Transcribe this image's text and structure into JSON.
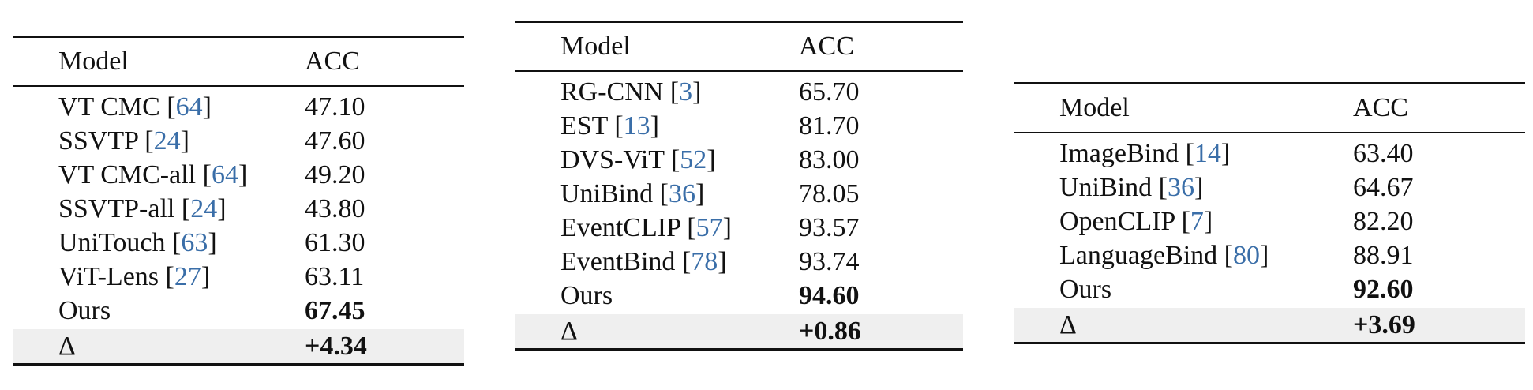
{
  "tables": [
    {
      "header": {
        "model": "Model",
        "acc": "ACC"
      },
      "rows": [
        {
          "name": "VT CMC",
          "ref": "64",
          "acc": "47.10"
        },
        {
          "name": "SSVTP",
          "ref": "24",
          "acc": "47.60"
        },
        {
          "name": "VT CMC-all",
          "ref": "64",
          "acc": "49.20"
        },
        {
          "name": "SSVTP-all",
          "ref": "24",
          "acc": "43.80"
        },
        {
          "name": "UniTouch",
          "ref": "63",
          "acc": "61.30"
        },
        {
          "name": "ViT-Lens",
          "ref": "27",
          "acc": "63.11"
        }
      ],
      "ours": {
        "name": "Ours",
        "acc": "67.45"
      },
      "delta": {
        "name": "Δ",
        "acc": "+4.34"
      }
    },
    {
      "header": {
        "model": "Model",
        "acc": "ACC"
      },
      "rows": [
        {
          "name": "RG-CNN",
          "ref": "3",
          "acc": "65.70"
        },
        {
          "name": "EST",
          "ref": "13",
          "acc": "81.70"
        },
        {
          "name": "DVS-ViT",
          "ref": "52",
          "acc": "83.00"
        },
        {
          "name": "UniBind",
          "ref": "36",
          "acc": "78.05"
        },
        {
          "name": "EventCLIP",
          "ref": "57",
          "acc": "93.57"
        },
        {
          "name": "EventBind",
          "ref": "78",
          "acc": "93.74"
        }
      ],
      "ours": {
        "name": "Ours",
        "acc": "94.60"
      },
      "delta": {
        "name": "Δ",
        "acc": "+0.86"
      }
    },
    {
      "header": {
        "model": "Model",
        "acc": "ACC"
      },
      "rows": [
        {
          "name": "ImageBind",
          "ref": "14",
          "acc": "63.40"
        },
        {
          "name": "UniBind",
          "ref": "36",
          "acc": "64.67"
        },
        {
          "name": "OpenCLIP",
          "ref": "7",
          "acc": "82.20"
        },
        {
          "name": "LanguageBind",
          "ref": "80",
          "acc": "88.91"
        }
      ],
      "ours": {
        "name": "Ours",
        "acc": "92.60"
      },
      "delta": {
        "name": "Δ",
        "acc": "+3.69"
      }
    }
  ]
}
